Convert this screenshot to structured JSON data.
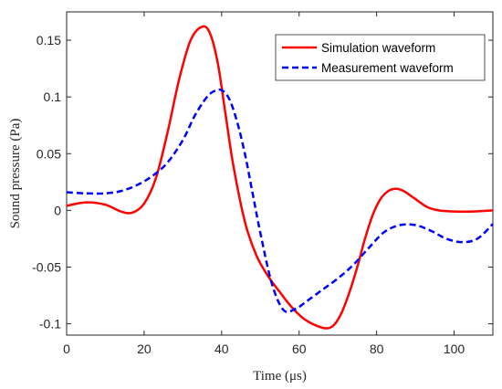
{
  "chart_data": {
    "type": "line",
    "xlabel": "Time (μs)",
    "ylabel": "Sound pressure (Pa)",
    "xlim": [
      0,
      110
    ],
    "ylim": [
      -0.11,
      0.175
    ],
    "xticks": [
      0,
      20,
      40,
      60,
      80,
      100
    ],
    "yticks": [
      -0.1,
      -0.05,
      0,
      0.05,
      0.1,
      0.15
    ],
    "xtick_labels": [
      "0",
      "20",
      "40",
      "60",
      "80",
      "100"
    ],
    "ytick_labels": [
      "-0.1",
      "-0.05",
      "0",
      "0.05",
      "0.1",
      "0.15"
    ],
    "grid": false,
    "legend_position": "top-right",
    "series": [
      {
        "name": "Simulation waveform",
        "color": "#ff0000",
        "style": "solid",
        "x": [
          0,
          5,
          10,
          14,
          17,
          20,
          23,
          26,
          29,
          32,
          35,
          37,
          39,
          41,
          43,
          46,
          49,
          52,
          55,
          58,
          61,
          64,
          67,
          69,
          71,
          73,
          75,
          77,
          79,
          81,
          83,
          85,
          87,
          90,
          93,
          96,
          100,
          105,
          110
        ],
        "y": [
          0.004,
          0.007,
          0.005,
          -0.001,
          -0.002,
          0.006,
          0.028,
          0.068,
          0.115,
          0.15,
          0.162,
          0.156,
          0.13,
          0.085,
          0.04,
          -0.01,
          -0.04,
          -0.058,
          -0.072,
          -0.085,
          -0.095,
          -0.101,
          -0.104,
          -0.101,
          -0.09,
          -0.072,
          -0.05,
          -0.025,
          -0.004,
          0.01,
          0.017,
          0.019,
          0.017,
          0.01,
          0.003,
          0.0,
          -0.001,
          -0.001,
          0.0
        ]
      },
      {
        "name": "Measurement waveform",
        "color": "#0000ff",
        "style": "dashed",
        "x": [
          0,
          5,
          10,
          14,
          18,
          22,
          26,
          30,
          33,
          36,
          38,
          40,
          42,
          44,
          46,
          48,
          50,
          53,
          56,
          59,
          62,
          66,
          70,
          74,
          78,
          82,
          86,
          90,
          94,
          98,
          102,
          106,
          110
        ],
        "y": [
          0.016,
          0.015,
          0.015,
          0.017,
          0.022,
          0.03,
          0.042,
          0.062,
          0.083,
          0.099,
          0.105,
          0.106,
          0.098,
          0.078,
          0.05,
          0.015,
          -0.02,
          -0.065,
          -0.088,
          -0.087,
          -0.08,
          -0.07,
          -0.06,
          -0.048,
          -0.033,
          -0.019,
          -0.013,
          -0.013,
          -0.018,
          -0.025,
          -0.028,
          -0.025,
          -0.012
        ]
      }
    ]
  }
}
